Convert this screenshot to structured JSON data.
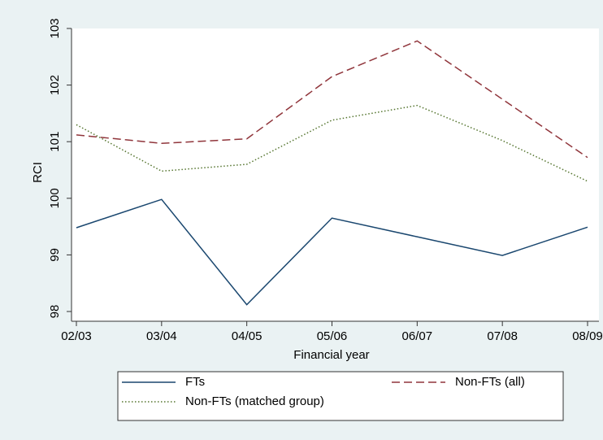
{
  "chart_data": {
    "type": "line",
    "x_label": "Financial year",
    "y_label": "RCI",
    "categories": [
      "02/03",
      "03/04",
      "04/05",
      "05/06",
      "06/07",
      "07/08",
      "08/09"
    ],
    "series": [
      {
        "name": "FTs",
        "color": "#1a476f",
        "dash": "solid",
        "values": [
          99.48,
          99.98,
          98.12,
          99.65,
          99.32,
          98.99,
          99.49
        ]
      },
      {
        "name": "Non-FTs (all)",
        "color": "#90353b",
        "dash": "dashed",
        "values": [
          101.12,
          100.97,
          101.05,
          102.15,
          102.78,
          101.75,
          100.72
        ]
      },
      {
        "name": "Non-FTs (matched group)",
        "color": "#55752f",
        "dash": "dotted",
        "values": [
          101.3,
          100.48,
          100.6,
          101.38,
          101.64,
          101.02,
          100.3
        ]
      }
    ],
    "ylim": [
      98,
      103
    ],
    "yticks": [
      98,
      99,
      100,
      101,
      102,
      103
    ],
    "grid": false,
    "legend": "bottom"
  }
}
